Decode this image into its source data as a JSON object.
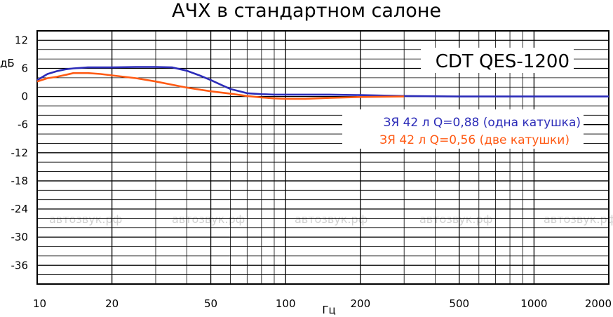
{
  "chart_data": {
    "type": "line",
    "title": "АЧХ в стандартном салоне",
    "xlabel": "Гц",
    "ylabel": "дБ",
    "xscale": "log",
    "xlim": [
      10,
      2000
    ],
    "ylim": [
      -40,
      14
    ],
    "x_ticks": [
      10,
      20,
      50,
      100,
      200,
      500,
      1000,
      2000
    ],
    "x_tick_labels": [
      "10",
      "20",
      "50",
      "100",
      "200",
      "500",
      "1000",
      "2000"
    ],
    "y_ticks": [
      12,
      6,
      0,
      -6,
      -12,
      -18,
      -24,
      -30,
      -36
    ],
    "y_tick_labels": [
      "12",
      "6",
      "0",
      "-6",
      "-12",
      "-18",
      "-24",
      "-30",
      "-36"
    ],
    "grid": true,
    "model_label": "CDT QES-1200",
    "watermark": "автозвук.рф",
    "series": [
      {
        "name": "ЗЯ 42 л Q=0,88 (одна катушка)",
        "color": "#2b2bb8",
        "x": [
          10,
          11,
          12,
          13,
          14,
          16,
          20,
          25,
          30,
          35,
          40,
          45,
          50,
          55,
          60,
          70,
          80,
          90,
          100,
          120,
          150,
          200,
          300,
          500,
          1000,
          2000
        ],
        "y": [
          3.5,
          4.8,
          5.4,
          5.8,
          6.0,
          6.2,
          6.2,
          6.3,
          6.3,
          6.2,
          5.5,
          4.5,
          3.5,
          2.5,
          1.6,
          0.7,
          0.5,
          0.4,
          0.4,
          0.4,
          0.4,
          0.3,
          0.1,
          0.0,
          0.0,
          0.0
        ]
      },
      {
        "name": "ЗЯ 42 л Q=0,56 (две катушки)",
        "color": "#ff5a14",
        "x": [
          10,
          11,
          12,
          13,
          14,
          16,
          18,
          20,
          25,
          30,
          35,
          40,
          50,
          60,
          70,
          80,
          90,
          100,
          110,
          120,
          150,
          200,
          300
        ],
        "y": [
          3.2,
          3.9,
          4.2,
          4.6,
          5.0,
          5.0,
          4.8,
          4.5,
          3.9,
          3.2,
          2.5,
          1.9,
          1.1,
          0.6,
          0.1,
          -0.2,
          -0.4,
          -0.5,
          -0.5,
          -0.5,
          -0.3,
          -0.1,
          0.0
        ]
      }
    ]
  }
}
